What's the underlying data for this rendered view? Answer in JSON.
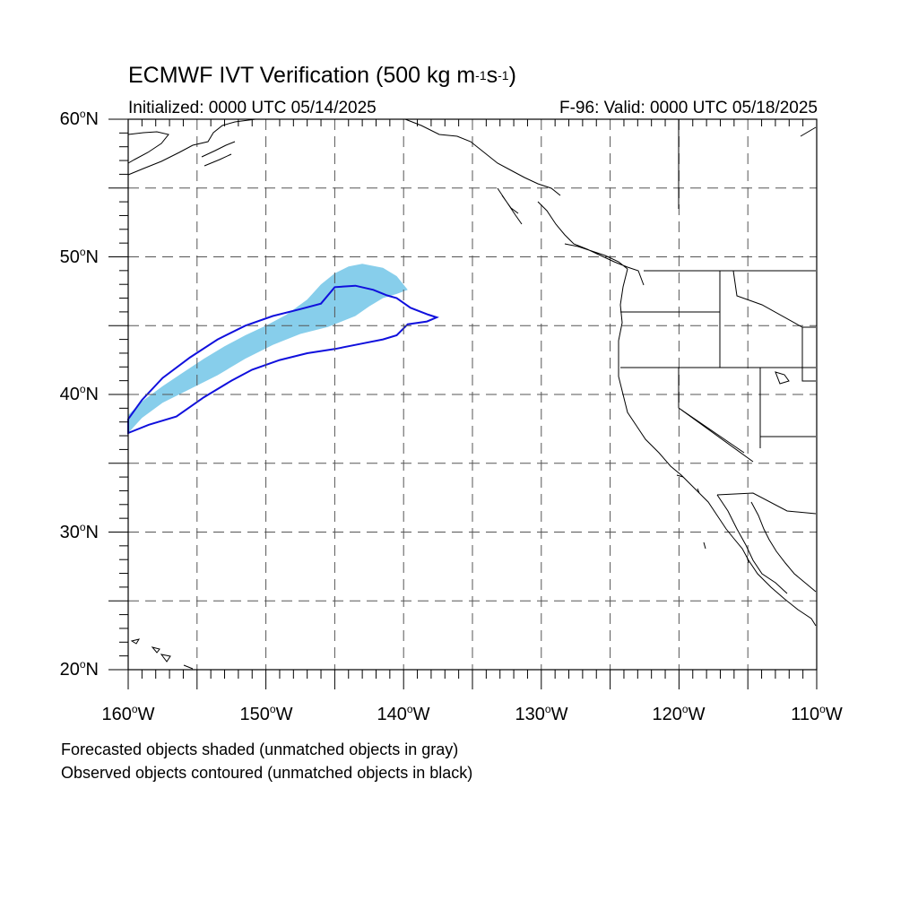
{
  "header": {
    "title_prefix": "ECMWF IVT Verification (500 kg m",
    "sup1": "-1",
    "title_mid": "s",
    "sup2": "-1",
    "title_suffix": ")",
    "initialized": "Initialized: 0000 UTC 05/14/2025",
    "valid": "F-96: Valid: 0000 UTC 05/18/2025"
  },
  "axes": {
    "lat_labels": [
      {
        "value": "60",
        "suffix": "N"
      },
      {
        "value": "50",
        "suffix": "N"
      },
      {
        "value": "40",
        "suffix": "N"
      },
      {
        "value": "30",
        "suffix": "N"
      },
      {
        "value": "20",
        "suffix": "N"
      }
    ],
    "lon_labels": [
      {
        "value": "160",
        "suffix": "W"
      },
      {
        "value": "150",
        "suffix": "W"
      },
      {
        "value": "140",
        "suffix": "W"
      },
      {
        "value": "130",
        "suffix": "W"
      },
      {
        "value": "120",
        "suffix": "W"
      },
      {
        "value": "110",
        "suffix": "W"
      }
    ],
    "lon_range": [
      -160,
      -110
    ],
    "lat_range": [
      20,
      60
    ],
    "grid_spacing_deg": 5,
    "grid_style": "dashed gray"
  },
  "legend": {
    "line1": "Forecasted objects shaded (unmatched objects in gray)",
    "line2": "Observed objects contoured (unmatched objects in black)"
  },
  "colors": {
    "forecast_fill": "#87ceeb",
    "observed_contour": "#1010dd",
    "coastline": "#000000",
    "grid": "#555555"
  },
  "objects": {
    "forecast_object": [
      [
        -160,
        38.5
      ],
      [
        -159,
        39.5
      ],
      [
        -157.5,
        40.6
      ],
      [
        -156,
        41.6
      ],
      [
        -154.5,
        42.6
      ],
      [
        -153,
        43.5
      ],
      [
        -151.5,
        44.3
      ],
      [
        -150,
        45.0
      ],
      [
        -148.5,
        45.8
      ],
      [
        -147,
        46.9
      ],
      [
        -146,
        48.0
      ],
      [
        -145,
        48.8
      ],
      [
        -144,
        49.3
      ],
      [
        -143,
        49.5
      ],
      [
        -141.5,
        49.2
      ],
      [
        -140.5,
        48.6
      ],
      [
        -139.7,
        47.6
      ],
      [
        -140.5,
        47.3
      ],
      [
        -141.5,
        47.0
      ],
      [
        -142.5,
        46.4
      ],
      [
        -143.5,
        45.7
      ],
      [
        -145.5,
        44.9
      ],
      [
        -147.5,
        44.4
      ],
      [
        -149.5,
        43.6
      ],
      [
        -151.5,
        42.6
      ],
      [
        -153.5,
        41.4
      ],
      [
        -155.5,
        40.4
      ],
      [
        -157.5,
        39.4
      ],
      [
        -159,
        38.3
      ],
      [
        -160,
        37.2
      ]
    ],
    "observed_object": [
      [
        -160,
        37.2
      ],
      [
        -158.5,
        37.8
      ],
      [
        -156.5,
        38.4
      ],
      [
        -154.5,
        39.8
      ],
      [
        -152.5,
        41.0
      ],
      [
        -151,
        41.8
      ],
      [
        -149,
        42.5
      ],
      [
        -147,
        43.0
      ],
      [
        -145,
        43.3
      ],
      [
        -143,
        43.7
      ],
      [
        -141.5,
        44.0
      ],
      [
        -140.5,
        44.3
      ],
      [
        -139.7,
        45.1
      ],
      [
        -138.3,
        45.3
      ],
      [
        -137.6,
        45.6
      ],
      [
        -138.2,
        45.8
      ],
      [
        -139.5,
        46.3
      ],
      [
        -140.5,
        47.0
      ],
      [
        -141.2,
        47.2
      ],
      [
        -142.2,
        47.6
      ],
      [
        -143.5,
        47.9
      ],
      [
        -145,
        47.8
      ],
      [
        -146,
        46.6
      ],
      [
        -147.5,
        46.2
      ],
      [
        -149.5,
        45.7
      ],
      [
        -151.5,
        45.0
      ],
      [
        -153.5,
        44.0
      ],
      [
        -155.5,
        42.7
      ],
      [
        -157.5,
        41.2
      ],
      [
        -159,
        39.6
      ],
      [
        -160,
        38.2
      ]
    ]
  }
}
